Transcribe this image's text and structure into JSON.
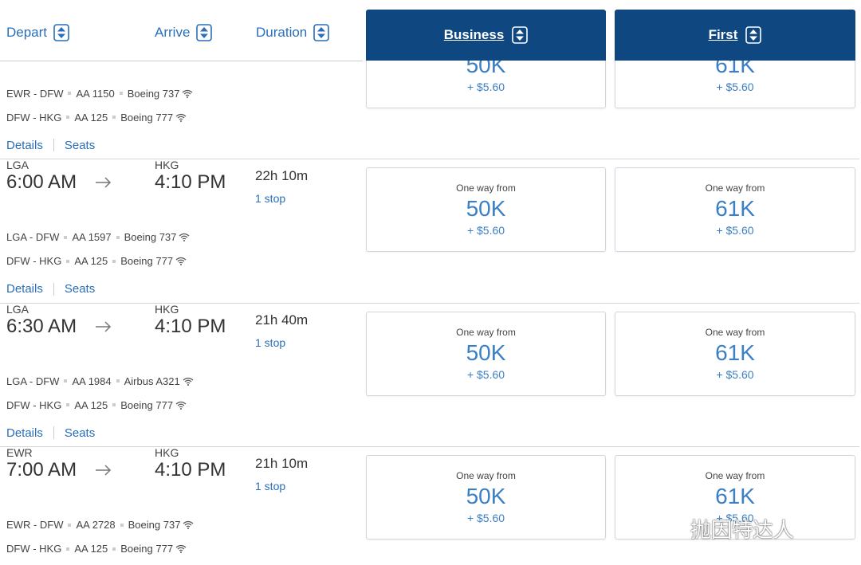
{
  "header": {
    "columns": [
      "Depart",
      "Arrive",
      "Duration"
    ],
    "cabins": [
      "Business",
      "First"
    ]
  },
  "flights": [
    {
      "segments": [
        {
          "route": "EWR - DFW",
          "flight": "AA 1150",
          "aircraft": "Boeing 737"
        },
        {
          "route": "DFW - HKG",
          "flight": "AA 125",
          "aircraft": "Boeing 777"
        }
      ],
      "links": [
        "Details",
        "Seats"
      ],
      "fares": [
        {
          "miles": "50K",
          "fee": "+ $5.60"
        },
        {
          "miles": "61K",
          "fee": "+ $5.60"
        }
      ]
    },
    {
      "origin": "LGA",
      "depart": "6:00 AM",
      "destination": "HKG",
      "arrive": "4:10 PM",
      "duration": "22h 10m",
      "stops": "1 stop",
      "segments": [
        {
          "route": "LGA - DFW",
          "flight": "AA 1597",
          "aircraft": "Boeing 737"
        },
        {
          "route": "DFW - HKG",
          "flight": "AA 125",
          "aircraft": "Boeing 777"
        }
      ],
      "links": [
        "Details",
        "Seats"
      ],
      "fares": [
        {
          "label": "One way from",
          "miles": "50K",
          "fee": "+ $5.60"
        },
        {
          "label": "One way from",
          "miles": "61K",
          "fee": "+ $5.60"
        }
      ]
    },
    {
      "origin": "LGA",
      "depart": "6:30 AM",
      "destination": "HKG",
      "arrive": "4:10 PM",
      "duration": "21h 40m",
      "stops": "1 stop",
      "segments": [
        {
          "route": "LGA - DFW",
          "flight": "AA 1984",
          "aircraft": "Airbus A321"
        },
        {
          "route": "DFW - HKG",
          "flight": "AA 125",
          "aircraft": "Boeing 777"
        }
      ],
      "links": [
        "Details",
        "Seats"
      ],
      "fares": [
        {
          "label": "One way from",
          "miles": "50K",
          "fee": "+ $5.60"
        },
        {
          "label": "One way from",
          "miles": "61K",
          "fee": "+ $5.60"
        }
      ]
    },
    {
      "origin": "EWR",
      "depart": "7:00 AM",
      "destination": "HKG",
      "arrive": "4:10 PM",
      "duration": "21h 10m",
      "stops": "1 stop",
      "segments": [
        {
          "route": "EWR - DFW",
          "flight": "AA 2728",
          "aircraft": "Boeing 737"
        },
        {
          "route": "DFW - HKG",
          "flight": "AA 125",
          "aircraft": "Boeing 777"
        }
      ],
      "fares": [
        {
          "label": "One way from",
          "miles": "50K",
          "fee": "+ $5.60"
        },
        {
          "label": "One way from",
          "miles": "61K",
          "fee": "+ $5.60"
        }
      ]
    }
  ],
  "watermark": "抛因特达人"
}
